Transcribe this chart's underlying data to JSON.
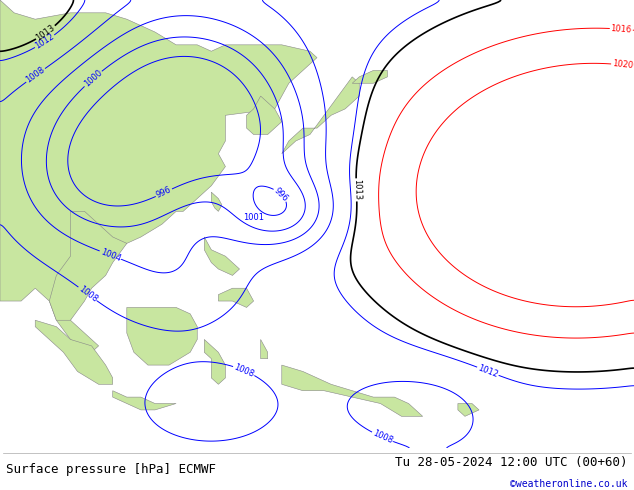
{
  "title_left": "Surface pressure [hPa] ECMWF",
  "title_right": "Tu 28-05-2024 12:00 UTC (00+60)",
  "watermark": "©weatheronline.co.uk",
  "background_color": "#ffffff",
  "land_color": "#c8e6a0",
  "sea_color": "#e8e8e8",
  "border_color": "#888888",
  "blue_contour_color": "#0000ff",
  "black_contour_color": "#000000",
  "red_contour_color": "#ff0000",
  "label_fontsize": 6,
  "footer_fontsize": 9,
  "footer_color": "#000000",
  "watermark_color": "#0000cc",
  "contour_linewidth": 0.7,
  "black_linewidth": 1.2,
  "figsize": [
    6.34,
    4.9
  ],
  "dpi": 100
}
